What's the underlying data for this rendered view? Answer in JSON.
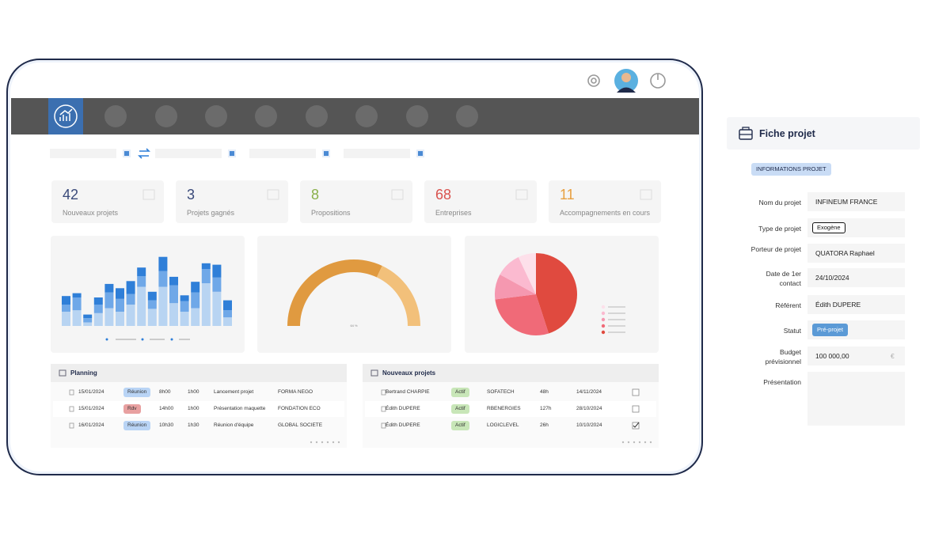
{
  "kpis": [
    {
      "value": 42,
      "label": "Nouveaux projets",
      "color": "#3a4a7a"
    },
    {
      "value": 3,
      "label": "Projets gagnés",
      "color": "#3a4a7a"
    },
    {
      "value": 8,
      "label": "Propositions",
      "color": "#8ab04a"
    },
    {
      "value": 68,
      "label": "Entreprises",
      "color": "#d9534f"
    },
    {
      "value": 11,
      "label": "Accompagnements en cours",
      "color": "#e8a040"
    }
  ],
  "bar_chart": {
    "type": "bar",
    "stacked": true,
    "ylim": [
      0,
      100
    ],
    "series": [
      {
        "color": "#b8d4f2",
        "values": [
          20,
          22,
          5,
          18,
          25,
          20,
          30,
          55,
          24,
          55,
          32,
          20,
          25,
          60,
          48,
          12
        ]
      },
      {
        "color": "#6fa8e8",
        "values": [
          10,
          18,
          6,
          12,
          22,
          18,
          15,
          15,
          12,
          22,
          25,
          15,
          22,
          20,
          20,
          10
        ]
      },
      {
        "color": "#2f7fd8",
        "values": [
          12,
          6,
          5,
          10,
          12,
          15,
          18,
          12,
          12,
          20,
          12,
          8,
          15,
          8,
          18,
          14
        ]
      }
    ]
  },
  "gauge": {
    "type": "gauge",
    "value": 64,
    "label": "64 %",
    "ylim": [
      0,
      100
    ],
    "colors": [
      "#e09a40",
      "#f2c07a"
    ]
  },
  "pie": {
    "type": "pie",
    "values": [
      45,
      28,
      10,
      10,
      7
    ],
    "colors": [
      "#e04a3f",
      "#f06a78",
      "#f598b0",
      "#fbbad0",
      "#fde0ea"
    ]
  },
  "planning": {
    "title": "Planning",
    "rows": [
      [
        "15/01/2024",
        "Réunion",
        "8h00",
        "1h00",
        "Lancement projet",
        "FORMA NEGO"
      ],
      [
        "15/01/2024",
        "Rdv",
        "14h00",
        "1h00",
        "Présentation maquette",
        "FONDATION ECO"
      ],
      [
        "16/01/2024",
        "Réunion",
        "10h30",
        "1h30",
        "Réunion d'équipe",
        "GLOBAL SOCIETE"
      ]
    ]
  },
  "nouveaux_projets": {
    "title": "Nouveaux projets",
    "rows": [
      [
        "Bertrand CHARPIE",
        "Actif",
        "SOFATECH",
        "48h",
        "14/11/2024"
      ],
      [
        "Édith DUPERE",
        "Actif",
        "RBENERGIES",
        "127h",
        "28/10/2024"
      ],
      [
        "Édith DUPERE",
        "Actif",
        "LOGICLEVEL",
        "26h",
        "10/10/2024"
      ]
    ],
    "checked": [
      false,
      false,
      true
    ]
  },
  "fiche": {
    "title": "Fiche projet",
    "section": "INFORMATIONS PROJET",
    "fields": [
      {
        "label": "Nom du projet",
        "value": "INFINEUM FRANCE"
      },
      {
        "label": "Type de projet",
        "value": "Exogène"
      },
      {
        "label": "Porteur de projet",
        "value": "QUATORA Raphael"
      },
      {
        "label": "Date de 1er contact",
        "value": "24/10/2024"
      },
      {
        "label": "Référent",
        "value": "Édith DUPERE"
      },
      {
        "label": "Statut",
        "value": "Pré-projet"
      },
      {
        "label": "Budget prévisionnel",
        "value": "100 000,00",
        "unit": "€"
      },
      {
        "label": "Présentation"
      }
    ]
  }
}
